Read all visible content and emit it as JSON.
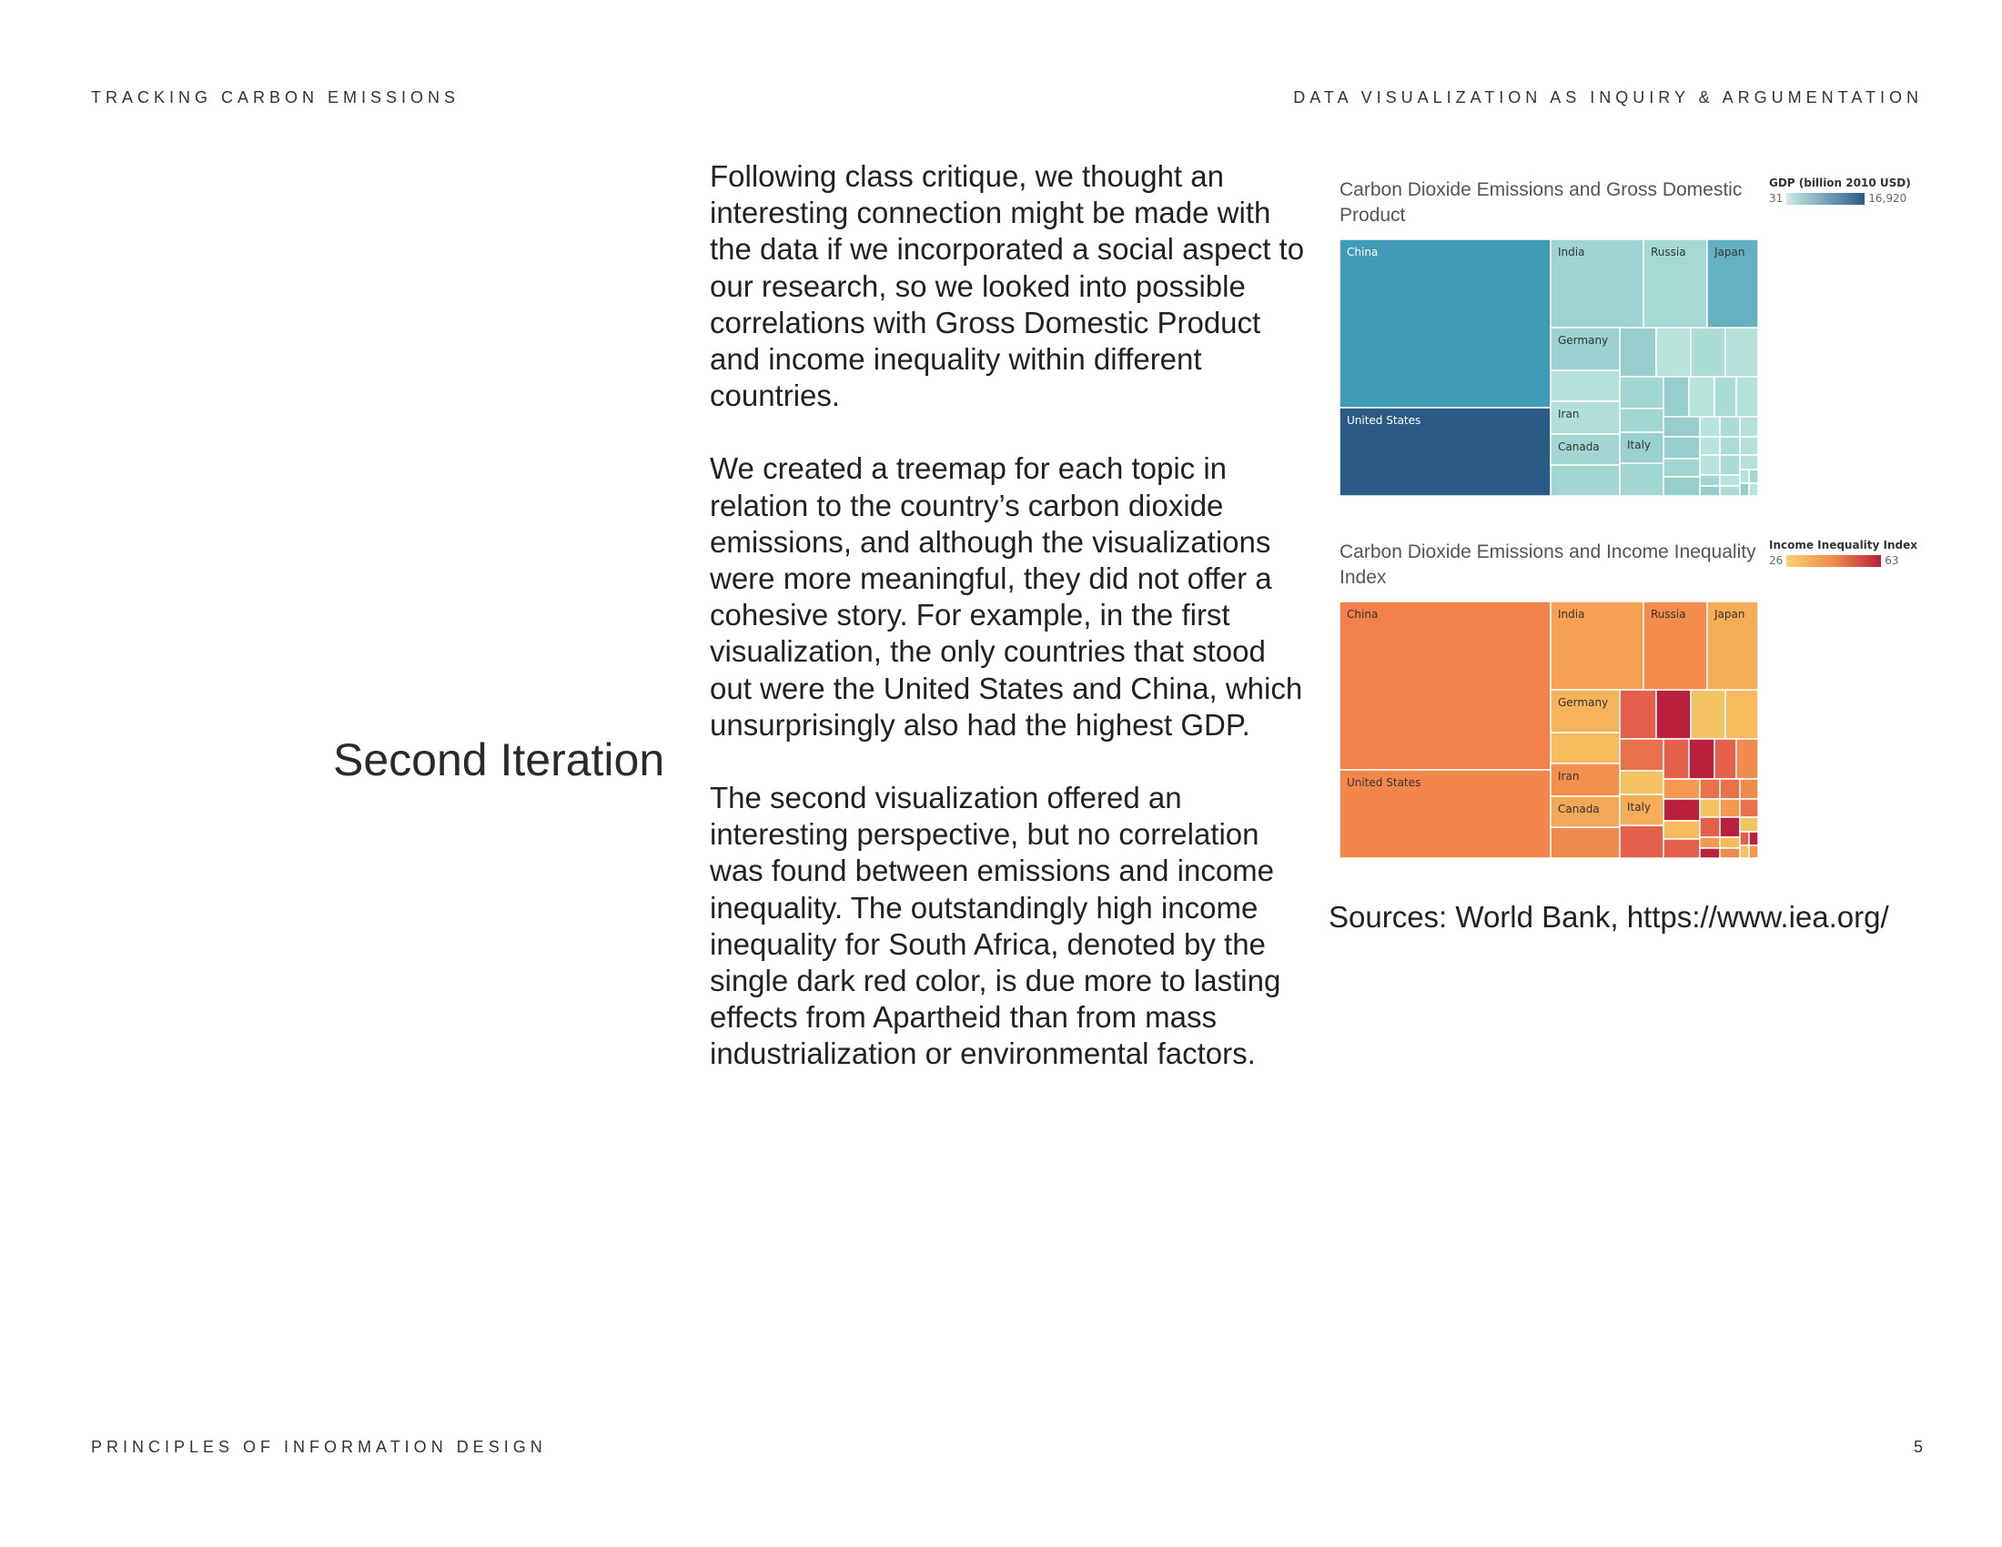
{
  "header": {
    "left": "TRACKING CARBON EMISSIONS",
    "right": "DATA VISUALIZATION AS INQUIRY & ARGUMENTATION"
  },
  "footer": {
    "left": "PRINCIPLES OF INFORMATION DESIGN",
    "page_number": "5"
  },
  "section_title": "Second Iteration",
  "paragraphs": [
    "Following class critique, we thought an interesting connection might be made with the data if we incorporated a social aspect to our research, so we looked into possible correlations with Gross Domestic Product and income inequality within different countries.",
    "We created a treemap for each topic in relation to the country’s carbon dioxide emissions, and although the visualizations were more meaningful, they did not offer a cohesive story. For example, in the first visualization, the only countries that stood out were the United States and China, which unsurprisingly also had the highest GDP.",
    "The second visualization offered an interesting perspective, but no correlation was found between emissions and income inequality. The outstandingly high income inequality for South Africa, denoted by the single dark red color, is due more to lasting effects from Apartheid than from mass industrialization or environmental factors."
  ],
  "sources": "Sources: World Bank, https://www.iea.org/",
  "chart_data": [
    {
      "type": "treemap",
      "title": "Carbon Dioxide Emissions and Gross Domestic Product",
      "legend": {
        "title": "GDP (billion 2010 USD)",
        "min": "31",
        "max": "16,920",
        "color_low": "#c9ebe6",
        "color_high": "#2b5a87"
      },
      "labeled_cells": [
        "China",
        "India",
        "Russia",
        "Japan",
        "Germany",
        "United States",
        "Iran",
        "Canada",
        "Italy"
      ],
      "colors": {
        "China": "#3f9bb6",
        "United States": "#2b5a87",
        "India": "#9dd4d2",
        "Russia": "#a5d9d4",
        "Japan": "#64b1c2",
        "Germany": "#9bd1d0",
        "Iran": "#b0e0d9",
        "Canada": "#a3d6d2",
        "Italy": "#9bd0d0",
        "others": [
          "#b4e2da",
          "#a1d6d3",
          "#96cdcd",
          "#b9e4dc",
          "#acdcd6"
        ]
      }
    },
    {
      "type": "treemap",
      "title": "Carbon Dioxide Emissions and Income Inequality Index",
      "legend": {
        "title": "Income Inequality Index",
        "min": "26",
        "max": "63",
        "color_low": "#f9d36e",
        "color_high": "#b8203b"
      },
      "labeled_cells": [
        "China",
        "India",
        "Russia",
        "Japan",
        "Germany",
        "United States",
        "Iran",
        "Canada",
        "Italy"
      ],
      "colors": {
        "China": "#f2804a",
        "United States": "#f2854a",
        "India": "#f6a153",
        "Russia": "#f38c4c",
        "Japan": "#f6ad57",
        "Germany": "#f6b45a",
        "Iran": "#f48f4d",
        "Canada": "#f5a857",
        "Italy": "#f6ac58",
        "others": [
          "#f7ba5c",
          "#f08a4d",
          "#e5604a",
          "#b8203b",
          "#f3c364",
          "#f49a50",
          "#e8704a"
        ]
      }
    }
  ]
}
